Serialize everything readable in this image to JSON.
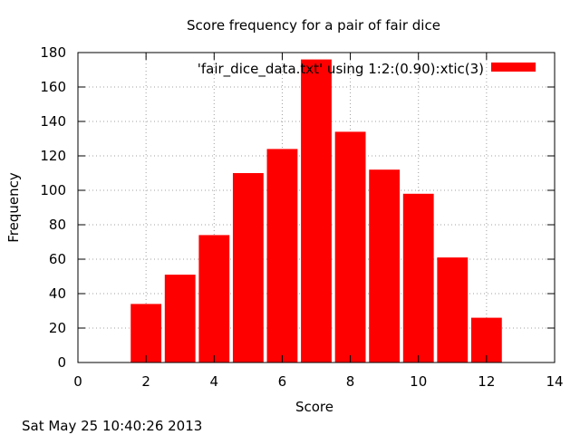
{
  "chart_data": {
    "type": "bar",
    "title": "Score frequency for a pair of fair dice",
    "xlabel": "Score",
    "ylabel": "Frequency",
    "x": [
      2,
      3,
      4,
      5,
      6,
      7,
      8,
      9,
      10,
      11,
      12
    ],
    "values": [
      34,
      51,
      74,
      110,
      124,
      176,
      134,
      112,
      98,
      61,
      26
    ],
    "bar_width": 0.9,
    "xlim": [
      0,
      14
    ],
    "ylim": [
      0,
      180
    ],
    "xticks": [
      0,
      2,
      4,
      6,
      8,
      10,
      12,
      14
    ],
    "yticks": [
      0,
      20,
      40,
      60,
      80,
      100,
      120,
      140,
      160,
      180
    ],
    "grid": true,
    "legend": {
      "label": "'fair_dice_data.txt' using 1:2:(0.90):xtic(3)",
      "position": "top-right"
    },
    "color": "#ff0000"
  },
  "timestamp": "Sat May 25 10:40:26 2013"
}
